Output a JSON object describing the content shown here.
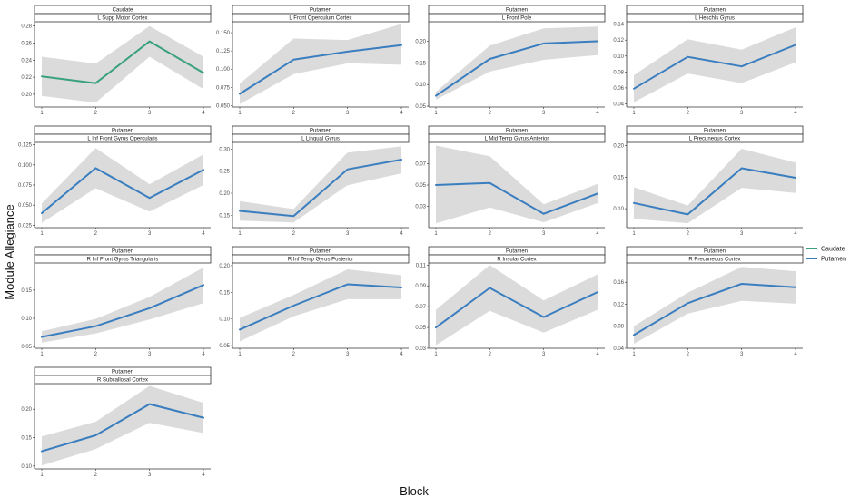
{
  "figure": {
    "ylabel": "Module Allegiance",
    "xlabel": "Block",
    "legend": {
      "placement": "right",
      "entries": [
        {
          "label": "Caudate",
          "color": "#3aa17e"
        },
        {
          "label": "Putamen",
          "color": "#3a7ebf"
        }
      ]
    }
  },
  "chart_data": [
    {
      "type": "line",
      "group": "Caudate",
      "region": "L Supp Motor Cortex",
      "x": [
        1,
        2,
        3,
        4
      ],
      "x_ticks": [
        "1",
        "2",
        "3",
        "4"
      ],
      "values": [
        0.221,
        0.213,
        0.262,
        0.225
      ],
      "lower": [
        0.198,
        0.19,
        0.244,
        0.206
      ],
      "upper": [
        0.244,
        0.236,
        0.28,
        0.244
      ],
      "ylim": [
        0.185,
        0.285
      ],
      "y_ticks": [
        0.2,
        0.22,
        0.24,
        0.26,
        0.28
      ],
      "y_tick_labels": [
        "0.20",
        "0.22",
        "0.24",
        "0.26",
        "0.28"
      ],
      "color": "#3aa17e"
    },
    {
      "type": "line",
      "group": "Putamen",
      "region": "L Front Operculum Cortex",
      "x": [
        1,
        2,
        3,
        4
      ],
      "x_ticks": [
        "1",
        "2",
        "3",
        "4"
      ],
      "values": [
        0.066,
        0.113,
        0.124,
        0.133
      ],
      "lower": [
        0.052,
        0.093,
        0.108,
        0.106
      ],
      "upper": [
        0.08,
        0.142,
        0.14,
        0.162
      ],
      "ylim": [
        0.048,
        0.165
      ],
      "y_ticks": [
        0.05,
        0.075,
        0.1,
        0.125,
        0.15
      ],
      "y_tick_labels": [
        "0.050",
        "0.075",
        "0.100",
        "0.125",
        "0.150"
      ],
      "color": "#3a7ebf"
    },
    {
      "type": "line",
      "group": "Putamen",
      "region": "L Front Pole",
      "x": [
        1,
        2,
        3,
        4
      ],
      "x_ticks": [
        "1",
        "2",
        "3",
        "4"
      ],
      "values": [
        0.074,
        0.159,
        0.195,
        0.2
      ],
      "lower": [
        0.065,
        0.13,
        0.157,
        0.168
      ],
      "upper": [
        0.083,
        0.19,
        0.23,
        0.234
      ],
      "ylim": [
        0.048,
        0.245
      ],
      "y_ticks": [
        0.05,
        0.1,
        0.15,
        0.2
      ],
      "y_tick_labels": [
        "0.05",
        "0.10",
        "0.15",
        "0.20"
      ],
      "color": "#3a7ebf"
    },
    {
      "type": "line",
      "group": "Putamen",
      "region": "L Heschls Gyrus",
      "x": [
        1,
        2,
        3,
        4
      ],
      "x_ticks": [
        "1",
        "2",
        "3",
        "4"
      ],
      "values": [
        0.059,
        0.099,
        0.087,
        0.114
      ],
      "lower": [
        0.042,
        0.078,
        0.066,
        0.092
      ],
      "upper": [
        0.076,
        0.121,
        0.108,
        0.136
      ],
      "ylim": [
        0.036,
        0.143
      ],
      "y_ticks": [
        0.04,
        0.06,
        0.08,
        0.1,
        0.12,
        0.14
      ],
      "y_tick_labels": [
        "0.04",
        "0.06",
        "0.08",
        "0.10",
        "0.12",
        "0.14"
      ],
      "color": "#3a7ebf"
    },
    {
      "type": "line",
      "group": "Putamen",
      "region": "L Inf Front Gyrus Opercularis",
      "x": [
        1,
        2,
        3,
        4
      ],
      "x_ticks": [
        "1",
        "2",
        "3",
        "4"
      ],
      "values": [
        0.04,
        0.096,
        0.059,
        0.094
      ],
      "lower": [
        0.028,
        0.071,
        0.042,
        0.075
      ],
      "upper": [
        0.052,
        0.121,
        0.076,
        0.113
      ],
      "ylim": [
        0.022,
        0.128
      ],
      "y_ticks": [
        0.025,
        0.05,
        0.075,
        0.1,
        0.125
      ],
      "y_tick_labels": [
        "0.025",
        "0.050",
        "0.075",
        "0.100",
        "0.125"
      ],
      "color": "#3a7ebf"
    },
    {
      "type": "line",
      "group": "Putamen",
      "region": "L Lingual Gyrus",
      "x": [
        1,
        2,
        3,
        4
      ],
      "x_ticks": [
        "1",
        "2",
        "3",
        "4"
      ],
      "values": [
        0.16,
        0.148,
        0.254,
        0.276
      ],
      "lower": [
        0.138,
        0.134,
        0.218,
        0.245
      ],
      "upper": [
        0.182,
        0.164,
        0.292,
        0.306
      ],
      "ylim": [
        0.122,
        0.315
      ],
      "y_ticks": [
        0.15,
        0.2,
        0.25,
        0.3
      ],
      "y_tick_labels": [
        "0.15",
        "0.20",
        "0.25",
        "0.30"
      ],
      "color": "#3a7ebf"
    },
    {
      "type": "line",
      "group": "Putamen",
      "region": "L Mid Temp Gyrus Anterior",
      "x": [
        1,
        2,
        3,
        4
      ],
      "x_ticks": [
        "1",
        "2",
        "3",
        "4"
      ],
      "values": [
        0.05,
        0.052,
        0.023,
        0.042
      ],
      "lower": [
        0.014,
        0.029,
        0.015,
        0.033
      ],
      "upper": [
        0.087,
        0.077,
        0.032,
        0.051
      ],
      "ylim": [
        0.01,
        0.09
      ],
      "y_ticks": [
        0.03,
        0.05,
        0.07
      ],
      "y_tick_labels": [
        "0.03",
        "0.05",
        "0.07"
      ],
      "color": "#3a7ebf"
    },
    {
      "type": "line",
      "group": "Putamen",
      "region": "L Precuneous Cortex",
      "x": [
        1,
        2,
        3,
        4
      ],
      "x_ticks": [
        "1",
        "2",
        "3",
        "4"
      ],
      "values": [
        0.109,
        0.091,
        0.164,
        0.149
      ],
      "lower": [
        0.084,
        0.077,
        0.133,
        0.125
      ],
      "upper": [
        0.134,
        0.105,
        0.195,
        0.173
      ],
      "ylim": [
        0.07,
        0.205
      ],
      "y_ticks": [
        0.1,
        0.15,
        0.2
      ],
      "y_tick_labels": [
        "0.10",
        "0.15",
        "0.20"
      ],
      "color": "#3a7ebf"
    },
    {
      "type": "line",
      "group": "Putamen",
      "region": "R Inf Front Gyrus Triangularis",
      "x": [
        1,
        2,
        3,
        4
      ],
      "x_ticks": [
        "1",
        "2",
        "3",
        "4"
      ],
      "values": [
        0.067,
        0.086,
        0.118,
        0.159
      ],
      "lower": [
        0.057,
        0.073,
        0.098,
        0.127
      ],
      "upper": [
        0.077,
        0.099,
        0.138,
        0.19
      ],
      "ylim": [
        0.047,
        0.198
      ],
      "y_ticks": [
        0.05,
        0.1,
        0.15
      ],
      "y_tick_labels": [
        "0.05",
        "0.10",
        "0.15"
      ],
      "color": "#3a7ebf"
    },
    {
      "type": "line",
      "group": "Putamen",
      "region": "R Inf Temp Gyrus Posterior",
      "x": [
        1,
        2,
        3,
        4
      ],
      "x_ticks": [
        "1",
        "2",
        "3",
        "4"
      ],
      "values": [
        0.08,
        0.125,
        0.165,
        0.159
      ],
      "lower": [
        0.058,
        0.105,
        0.137,
        0.137
      ],
      "upper": [
        0.102,
        0.145,
        0.193,
        0.182
      ],
      "ylim": [
        0.045,
        0.205
      ],
      "y_ticks": [
        0.05,
        0.1,
        0.15,
        0.2
      ],
      "y_tick_labels": [
        "0.05",
        "0.10",
        "0.15",
        "0.20"
      ],
      "color": "#3a7ebf"
    },
    {
      "type": "line",
      "group": "Putamen",
      "region": "R Insular Cortex",
      "x": [
        1,
        2,
        3,
        4
      ],
      "x_ticks": [
        "1",
        "2",
        "3",
        "4"
      ],
      "values": [
        0.05,
        0.088,
        0.06,
        0.084
      ],
      "lower": [
        0.033,
        0.066,
        0.045,
        0.067
      ],
      "upper": [
        0.067,
        0.11,
        0.076,
        0.101
      ],
      "ylim": [
        0.03,
        0.112
      ],
      "y_ticks": [
        0.03,
        0.05,
        0.07,
        0.09,
        0.11
      ],
      "y_tick_labels": [
        "0.03",
        "0.05",
        "0.07",
        "0.09",
        "0.11"
      ],
      "color": "#3a7ebf"
    },
    {
      "type": "line",
      "group": "Putamen",
      "region": "R Precuneous Cortex",
      "x": [
        1,
        2,
        3,
        4
      ],
      "x_ticks": [
        "1",
        "2",
        "3",
        "4"
      ],
      "values": [
        0.064,
        0.122,
        0.157,
        0.151
      ],
      "lower": [
        0.048,
        0.103,
        0.126,
        0.121
      ],
      "upper": [
        0.08,
        0.141,
        0.188,
        0.18
      ],
      "ylim": [
        0.04,
        0.195
      ],
      "y_ticks": [
        0.04,
        0.08,
        0.12,
        0.16
      ],
      "y_tick_labels": [
        "0.04",
        "0.08",
        "0.12",
        "0.16"
      ],
      "color": "#3a7ebf"
    },
    {
      "type": "line",
      "group": "Putamen",
      "region": "R Subcallosal Cortex",
      "x": [
        1,
        2,
        3,
        4
      ],
      "x_ticks": [
        "1",
        "2",
        "3",
        "4"
      ],
      "values": [
        0.126,
        0.154,
        0.209,
        0.185
      ],
      "lower": [
        0.101,
        0.13,
        0.176,
        0.158
      ],
      "upper": [
        0.152,
        0.178,
        0.241,
        0.211
      ],
      "ylim": [
        0.095,
        0.245
      ],
      "y_ticks": [
        0.1,
        0.15,
        0.2
      ],
      "y_tick_labels": [
        "0.10",
        "0.15",
        "0.20"
      ],
      "color": "#3a7ebf"
    }
  ]
}
